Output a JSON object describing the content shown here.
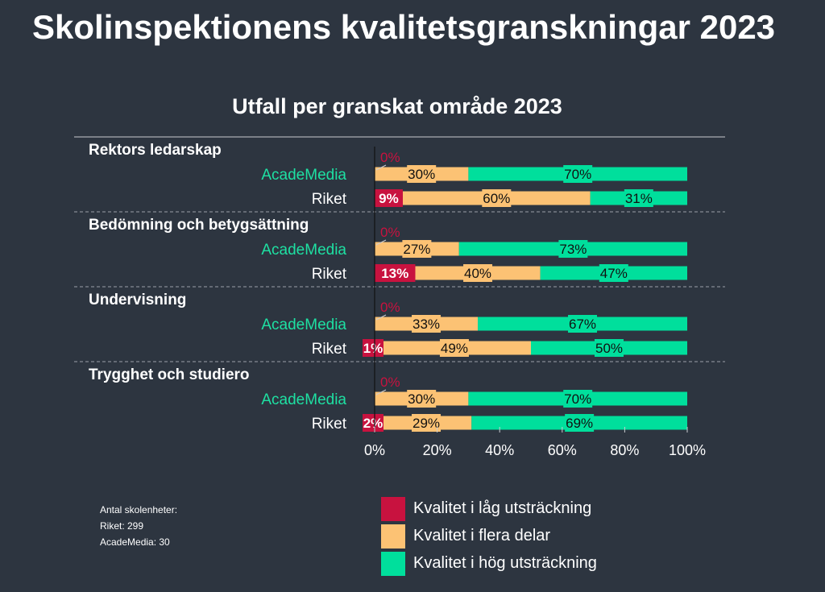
{
  "page": {
    "title": "Skolinspektionens kvalitetsgranskningar 2023",
    "footnote": [
      "Antal skolenheter:",
      "Riket: 299",
      "AcadeMedia: 30"
    ]
  },
  "colors": {
    "low": "#c8123f",
    "mid": "#fcc274",
    "high": "#00df9c",
    "academedia_label": "#1ee0a2",
    "background": "#2d3540"
  },
  "chart_data": {
    "type": "bar",
    "orientation": "horizontal",
    "stacked": true,
    "title": "Utfall per granskat område 2023",
    "x_ticks": [
      "0%",
      "20%",
      "40%",
      "60%",
      "80%",
      "100%"
    ],
    "xlim": [
      0,
      100
    ],
    "legend_placement": "bottom",
    "series": [
      {
        "key": "low",
        "name": "Kvalitet i låg utsträckning"
      },
      {
        "key": "mid",
        "name": "Kvalitet i flera delar"
      },
      {
        "key": "high",
        "name": "Kvalitet i hög utsträckning"
      }
    ],
    "groups": [
      {
        "name": "Rektors ledarskap",
        "rows": [
          {
            "label": "AcadeMedia",
            "values": [
              0,
              30,
              70
            ],
            "labels": [
              "0%",
              "30%",
              "70%"
            ]
          },
          {
            "label": "Riket",
            "values": [
              9,
              60,
              31
            ],
            "labels": [
              "9%",
              "60%",
              "31%"
            ]
          }
        ]
      },
      {
        "name": "Bedömning och betygsättning",
        "rows": [
          {
            "label": "AcadeMedia",
            "values": [
              0,
              27,
              73
            ],
            "labels": [
              "0%",
              "27%",
              "73%"
            ]
          },
          {
            "label": "Riket",
            "values": [
              13,
              40,
              47
            ],
            "labels": [
              "13%",
              "40%",
              "47%"
            ]
          }
        ]
      },
      {
        "name": "Undervisning",
        "rows": [
          {
            "label": "AcadeMedia",
            "values": [
              0,
              33,
              67
            ],
            "labels": [
              "0%",
              "33%",
              "67%"
            ]
          },
          {
            "label": "Riket",
            "values": [
              1,
              49,
              50
            ],
            "labels": [
              "1%",
              "49%",
              "50%"
            ]
          }
        ]
      },
      {
        "name": "Trygghet och studiero",
        "rows": [
          {
            "label": "AcadeMedia",
            "values": [
              0,
              30,
              70
            ],
            "labels": [
              "0%",
              "30%",
              "70%"
            ]
          },
          {
            "label": "Riket",
            "values": [
              2,
              29,
              69
            ],
            "labels": [
              "2%",
              "29%",
              "69%"
            ]
          }
        ]
      }
    ]
  }
}
